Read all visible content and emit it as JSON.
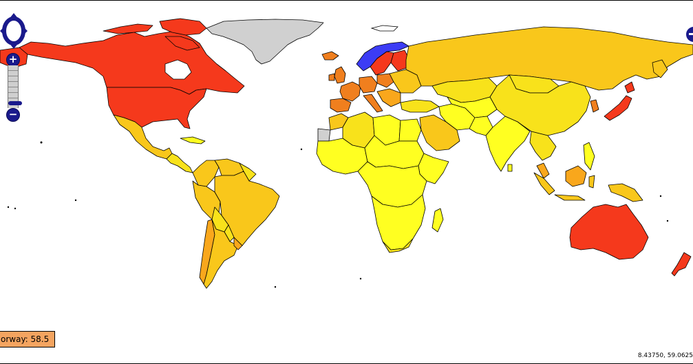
{
  "map": {
    "hover_label": "orway: 58.5",
    "mouse_position": "8.43750, 59.0625",
    "controls": {
      "zoom_in_glyph": "+",
      "zoom_out_glyph": "−",
      "pan_icon": "pan-arrows-icon",
      "right_control_icon": "zoom-out-icon"
    },
    "colors": {
      "highest": "#f5391c",
      "high": "#f07f1e",
      "mid_high": "#f9a71c",
      "mid": "#f9c71b",
      "mid_low": "#f8e21b",
      "low": "#ffff21",
      "no_data": "#d0d0d0",
      "selected": "#3c3cf5",
      "ocean": "#ffffff"
    },
    "selected_country": "Norway",
    "selected_value": 58.5
  }
}
